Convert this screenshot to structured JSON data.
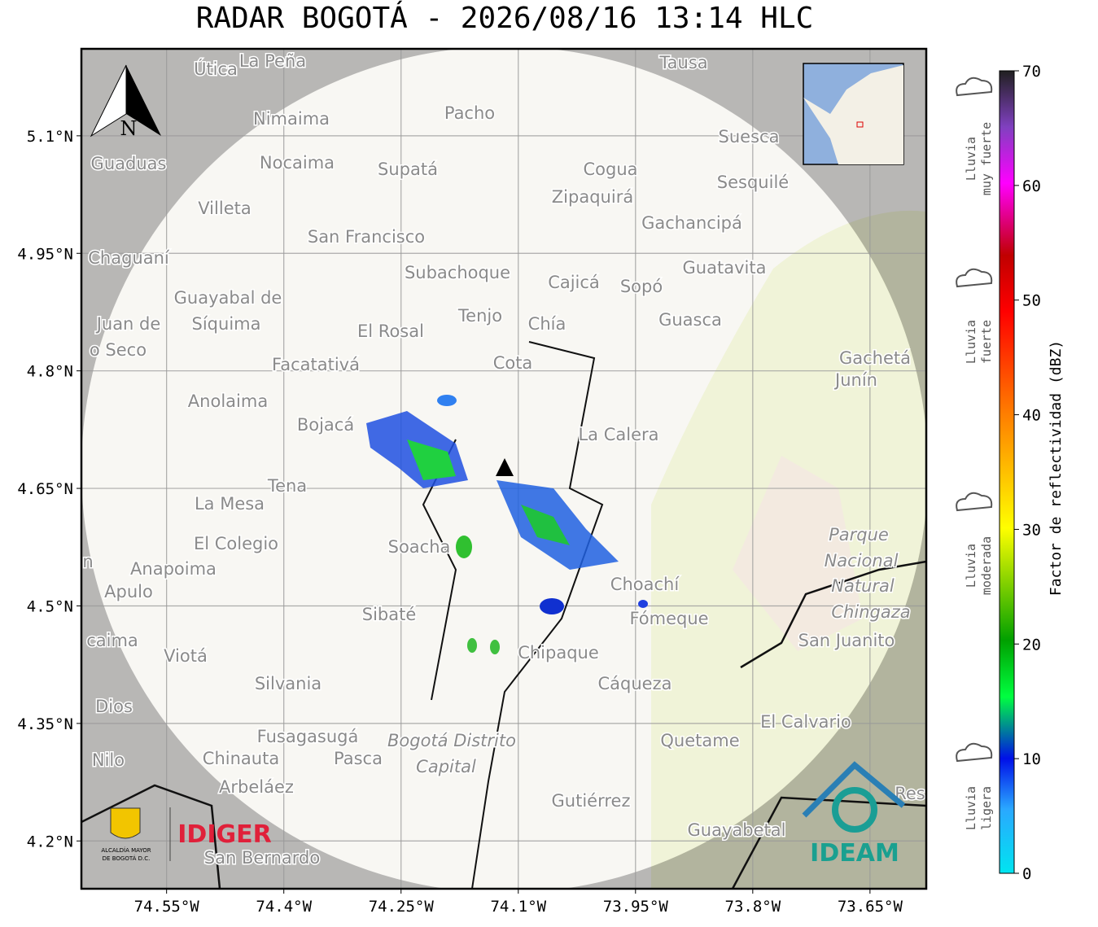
{
  "map": {
    "title": "RADAR BOGOTÁ - 2026/08/16 13:14 HLC",
    "xlim": [
      -74.659,
      -73.578
    ],
    "ylim": [
      4.139,
      5.211
    ],
    "xticks": [
      {
        "value": -74.55,
        "label": "74.55°W"
      },
      {
        "value": -74.4,
        "label": "74.4°W"
      },
      {
        "value": -74.25,
        "label": "74.25°W"
      },
      {
        "value": -74.1,
        "label": "74.1°W"
      },
      {
        "value": -73.95,
        "label": "73.95°W"
      },
      {
        "value": -73.8,
        "label": "73.8°W"
      },
      {
        "value": -73.65,
        "label": "73.65°W"
      }
    ],
    "yticks": [
      {
        "value": 5.1,
        "label": "5.1°N"
      },
      {
        "value": 4.95,
        "label": "4.95°N"
      },
      {
        "value": 4.8,
        "label": "4.8°N"
      },
      {
        "value": 4.65,
        "label": "4.65°N"
      },
      {
        "value": 4.5,
        "label": "4.5°N"
      },
      {
        "value": 4.35,
        "label": "4.35°N"
      },
      {
        "value": 4.2,
        "label": "4.2°N"
      }
    ],
    "grid": true,
    "north_label": "N",
    "places": [
      "Útica",
      "La Peña",
      "Tausa",
      "Pacho",
      "Nimaima",
      "Guaduas",
      "Nocaima",
      "Supatá",
      "Cogua",
      "Suesca",
      "Sesquilé",
      "Zipaquirá",
      "Villeta",
      "Gachancipá",
      "San Francisco",
      "Chaguaní",
      "Guatavita",
      "Subachoque",
      "Cajicá",
      "Sopó",
      "Guayabal de",
      "Síquima",
      "Juan de",
      "o Seco",
      "Tenjo",
      "Chía",
      "Guasca",
      "El Rosal",
      "Facatativá",
      "Cota",
      "Gachetá",
      "Junín",
      "Anolaima",
      "Bojacá",
      "La Calera",
      "Tena",
      "La Mesa",
      "El Colegio",
      "Soacha",
      "Parque",
      "Nacional",
      "Natural",
      "Chingaza",
      "Anapoima",
      "Apulo",
      "Choachí",
      "Fómeque",
      "Sibaté",
      "San Juanito",
      "caima",
      "Viotá",
      "Chipaque",
      "Silvania",
      "Cáqueza",
      "Dios",
      "El Calvario",
      "Fusagasugá",
      "Bogotá Distrito",
      "Capital",
      "Quetame",
      "Nilo",
      "Chinauta",
      "Pasca",
      "Arbeláez",
      "Res",
      "Gutiérrez",
      "Guayabetal",
      "San Bernardo",
      "n"
    ],
    "logos": {
      "alcaldia": [
        "ALCALDÍA MAYOR",
        "DE BOGOTÁ D.C."
      ],
      "idiger": "IDIGER",
      "ideam": "IDEAM"
    }
  },
  "colorbar": {
    "label": "Factor de reflectividad (dBZ)",
    "lim": [
      0,
      70
    ],
    "ticks": [
      0,
      10,
      20,
      30,
      40,
      50,
      60,
      70
    ],
    "levels": [
      [
        "Lluvia",
        "ligera"
      ],
      [
        "Lluvia",
        "moderada"
      ],
      [
        "Lluvia",
        "fuerte"
      ],
      [
        "Lluvia",
        "muy fuerte"
      ]
    ]
  }
}
